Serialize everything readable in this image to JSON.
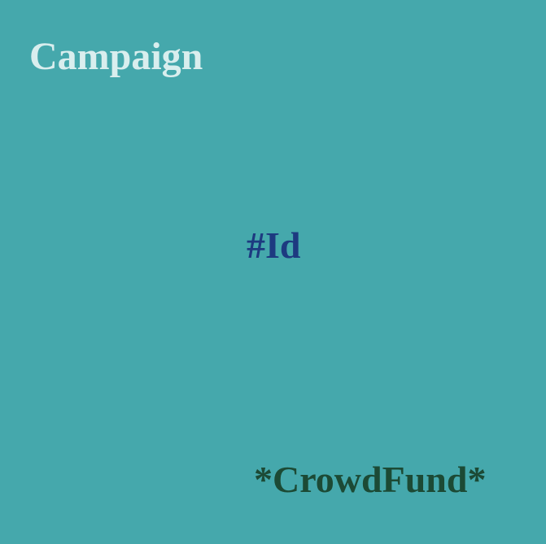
{
  "texts": {
    "heading": "Campaign",
    "center_tag": "#Id",
    "corner_tag": "*CrowdFund*"
  },
  "colors": {
    "background": "#45a8ac",
    "heading": "#d9eeee",
    "center_tag": "#1d3a80",
    "corner_tag": "#1c4a35"
  }
}
